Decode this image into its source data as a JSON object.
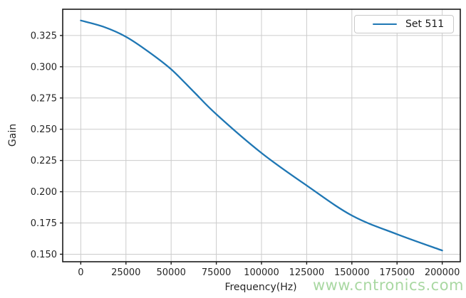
{
  "figure": {
    "background": "#ffffff",
    "watermark": {
      "text": "www.cntronics.com",
      "color": "#a9d8a2"
    }
  },
  "chart_data": {
    "type": "line",
    "title": "",
    "xlabel": "Frequency(Hz)",
    "ylabel": "Gain",
    "xlim": [
      -10000,
      210000
    ],
    "ylim": [
      0.144,
      0.346
    ],
    "xticks": [
      0,
      25000,
      50000,
      75000,
      100000,
      125000,
      150000,
      175000,
      200000
    ],
    "xtick_labels": [
      "0",
      "25000",
      "50000",
      "75000",
      "100000",
      "125000",
      "150000",
      "175000",
      "200000"
    ],
    "yticks": [
      0.15,
      0.175,
      0.2,
      0.225,
      0.25,
      0.275,
      0.3,
      0.325
    ],
    "ytick_labels": [
      "0.150",
      "0.175",
      "0.200",
      "0.225",
      "0.250",
      "0.275",
      "0.300",
      "0.325"
    ],
    "grid": true,
    "legend": {
      "position": "upper right",
      "entries": [
        {
          "label": "Set 511",
          "color": "#1f77b4"
        }
      ]
    },
    "series": [
      {
        "name": "Set 511",
        "color": "#1f77b4",
        "points": [
          [
            0,
            0.337
          ],
          [
            12500,
            0.332
          ],
          [
            25000,
            0.324
          ],
          [
            37500,
            0.312
          ],
          [
            50000,
            0.298
          ],
          [
            62500,
            0.28
          ],
          [
            75000,
            0.262
          ],
          [
            100000,
            0.231
          ],
          [
            125000,
            0.205
          ],
          [
            150000,
            0.181
          ],
          [
            175000,
            0.166
          ],
          [
            200000,
            0.153
          ]
        ]
      }
    ],
    "colors": {
      "grid": "#cccccc",
      "axis": "#1a1a1a",
      "text": "#262626",
      "plot_background": "#ffffff"
    }
  }
}
